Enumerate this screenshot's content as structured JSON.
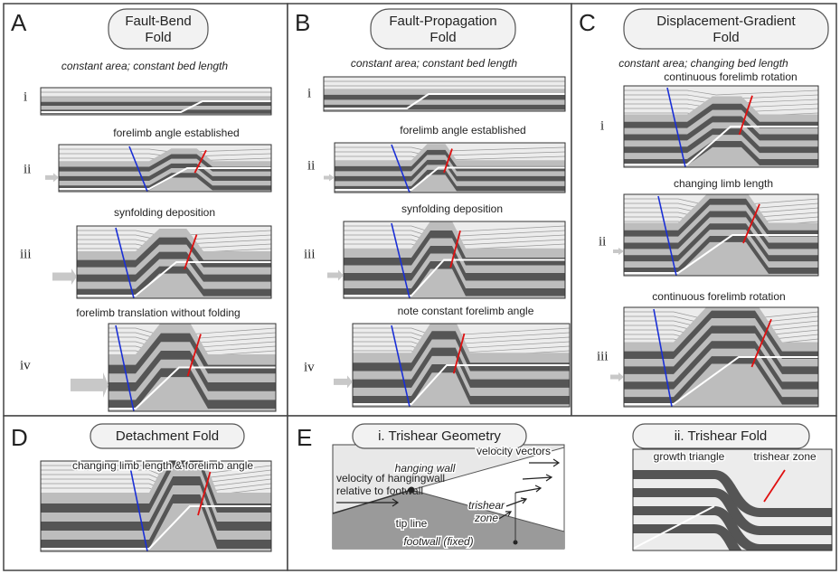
{
  "panels": [
    {
      "letter": "A",
      "title": [
        "Fault-Bend",
        "Fold"
      ],
      "subtitle": "constant area; constant bed length",
      "stages": [
        "i",
        "ii",
        "iii",
        "iv"
      ],
      "annotations": [
        "forelimb angle established",
        "synfolding deposition",
        "forelimb translation without folding"
      ]
    },
    {
      "letter": "B",
      "title": [
        "Fault-Propagation",
        "Fold"
      ],
      "subtitle": "constant area; constant bed length",
      "stages": [
        "i",
        "ii",
        "iii",
        "iv"
      ],
      "annotations": [
        "forelimb angle established",
        "synfolding deposition",
        "note constant forelimb angle"
      ]
    },
    {
      "letter": "C",
      "title": [
        "Displacement-Gradient",
        "Fold"
      ],
      "subtitle": "constant area; changing bed length",
      "stages": [
        "i",
        "ii",
        "iii"
      ],
      "annotations": [
        "continuous forelimb rotation",
        "changing limb length",
        "continuous forelimb rotation"
      ]
    },
    {
      "letter": "D",
      "title": [
        "Detachment Fold"
      ],
      "annotations": [
        "changing limb length & forelimb angle"
      ]
    },
    {
      "letter": "E",
      "parts": [
        {
          "title": "i. Trishear Geometry",
          "labels": [
            "velocity vectors",
            "hanging wall",
            "velocity of hangingwall",
            "relative to footwall",
            "tip line",
            "trishear",
            "zone",
            "footwall (fixed)"
          ]
        },
        {
          "title": "ii. Trishear Fold",
          "labels": [
            "growth triangle",
            "trishear zone"
          ]
        }
      ]
    }
  ]
}
